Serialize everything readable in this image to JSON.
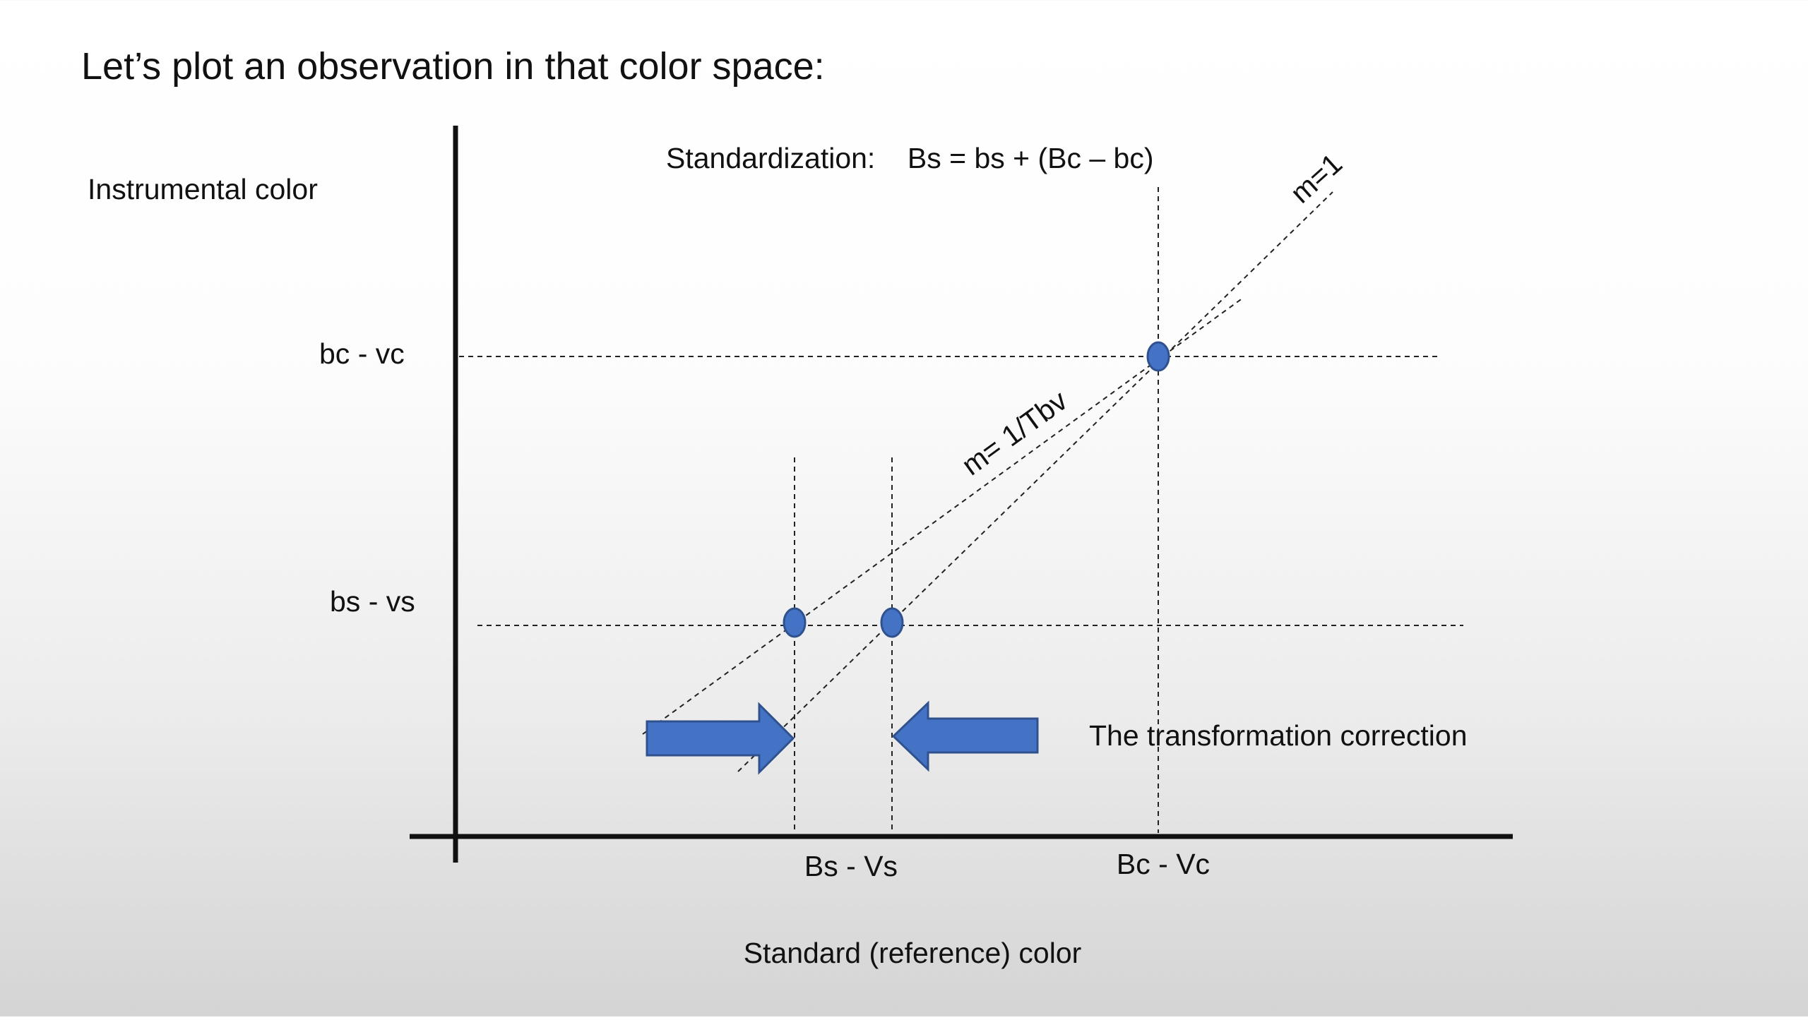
{
  "slide": {
    "title": "Let’s plot an observation in that color space:"
  },
  "diagram": {
    "y_axis_label": "Instrumental color",
    "x_axis_label": "Standard (reference) color",
    "formula": "Standardization:    Bs = bs + (Bc – bc)",
    "y_ticks": {
      "upper": "bc - vc",
      "lower": "bs - vs"
    },
    "x_ticks": {
      "left": "Bs - Vs",
      "right": "Bc - Vc"
    },
    "line_labels": {
      "slope_one": "m=1",
      "slope_tbv": "m= 1/Tbv"
    },
    "correction_label": "The transformation correction",
    "point_color": "#4472c4",
    "arrow_color": "#4472c4"
  }
}
